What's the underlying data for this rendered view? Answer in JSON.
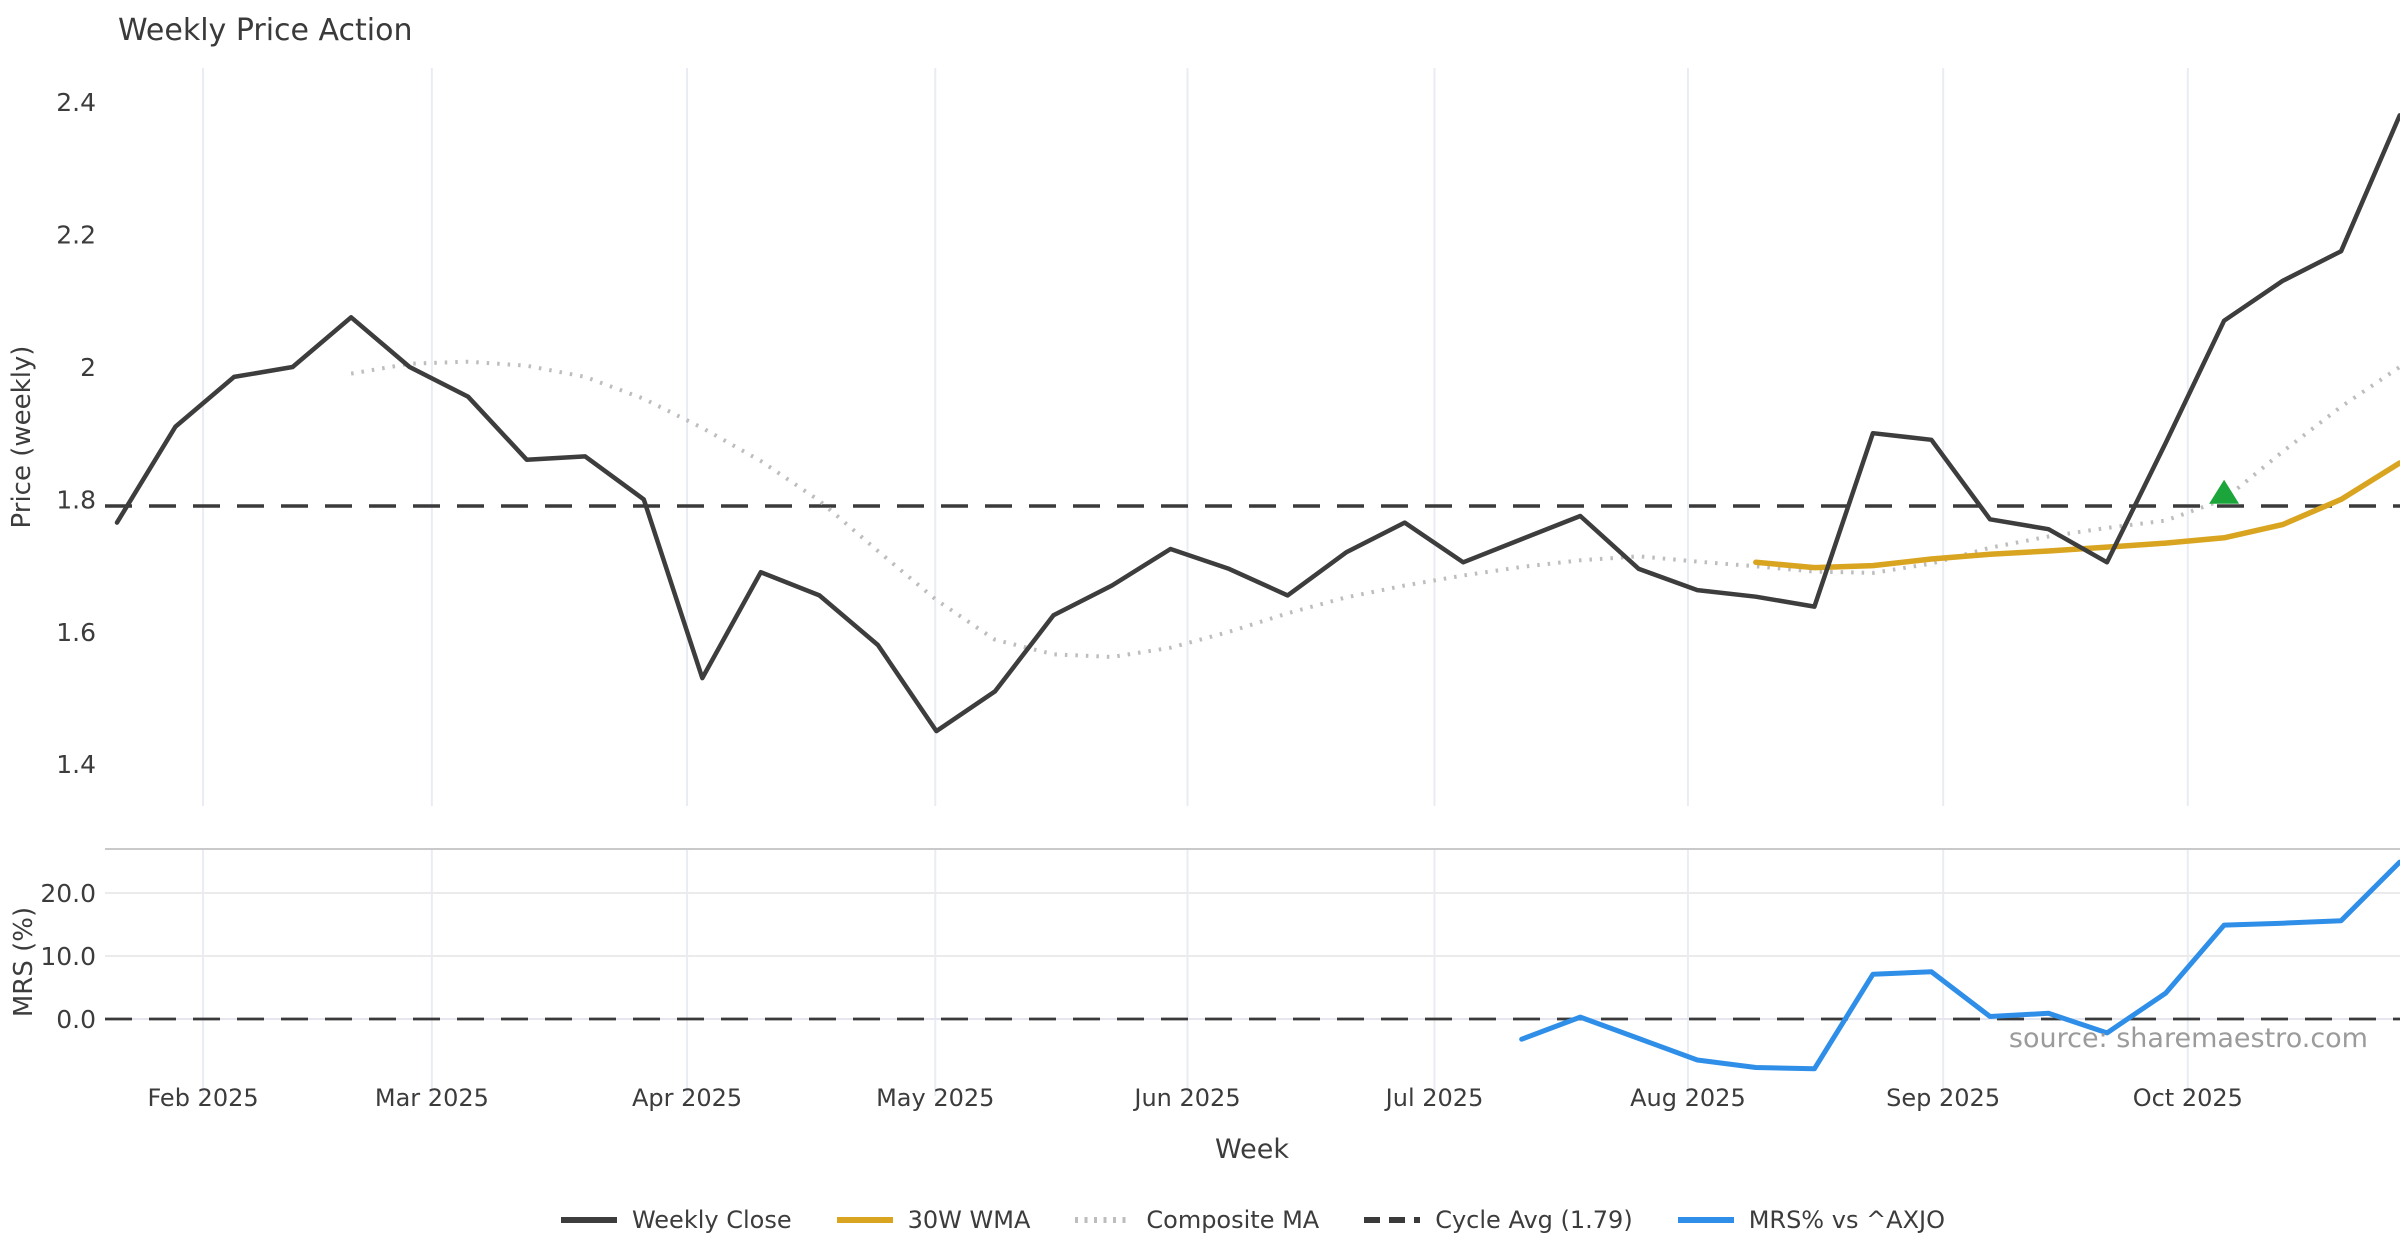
{
  "title": "Weekly Price Action",
  "source_note": "source: sharemaestro.com",
  "colors": {
    "weekly_close": "#3D3D3D",
    "wma_30w": "#D9A521",
    "composite_ma": "#BDBDBD",
    "cycle_avg": "#3A3A3A",
    "mrs": "#2F8FE8",
    "signal_marker": "#1CA53A",
    "gridline": "#E9EDF3",
    "panel_spine": "#C9C9C9",
    "hgrid": "#EBEBEB",
    "zero_grid": "#E6E6F0",
    "text": "#3C3C3C",
    "muted_text": "#9B9B9B"
  },
  "chart_data": {
    "type": "line",
    "title": "Weekly Price Action",
    "x_axis": {
      "label": "Week",
      "unit": "weekly",
      "n_points": 40,
      "month_ticks": [
        {
          "label": "Feb 2025",
          "pos": 1.47
        },
        {
          "label": "Mar 2025",
          "pos": 5.38
        },
        {
          "label": "Apr 2025",
          "pos": 9.74
        },
        {
          "label": "May 2025",
          "pos": 13.98
        },
        {
          "label": "Jun 2025",
          "pos": 18.29
        },
        {
          "label": "Jul 2025",
          "pos": 22.51
        },
        {
          "label": "Aug 2025",
          "pos": 26.84
        },
        {
          "label": "Sep 2025",
          "pos": 31.2
        },
        {
          "label": "Oct 2025",
          "pos": 35.38
        }
      ]
    },
    "panels": [
      {
        "name": "price",
        "ylabel": "Price (weekly)",
        "ylim": [
          1.34,
          2.45
        ],
        "grid": "vertical-only",
        "yticks": [
          {
            "v": 2.4,
            "label": "2.4"
          },
          {
            "v": 2.2,
            "label": "2.2"
          },
          {
            "v": 2.0,
            "label": "2"
          },
          {
            "v": 1.8,
            "label": "1.8"
          },
          {
            "v": 1.6,
            "label": "1.6"
          },
          {
            "v": 1.4,
            "label": "1.4"
          }
        ],
        "series": [
          {
            "name": "Weekly Close",
            "style": "solid",
            "color_key": "weekly_close",
            "width": 4.5,
            "start_index": 0,
            "values": [
              1.765,
              1.91,
              1.985,
              2.0,
              2.075,
              2.0,
              1.955,
              1.86,
              1.865,
              1.8,
              1.53,
              1.69,
              1.655,
              1.58,
              1.45,
              1.51,
              1.625,
              1.67,
              1.725,
              1.695,
              1.655,
              1.72,
              1.765,
              1.705,
              1.74,
              1.775,
              1.695,
              1.663,
              1.653,
              1.638,
              1.9,
              1.89,
              1.77,
              1.755,
              1.705,
              1.885,
              2.07,
              2.13,
              2.175,
              2.38
            ]
          },
          {
            "name": "30W WMA",
            "style": "solid",
            "color_key": "wma_30w",
            "width": 5.5,
            "start_index": 28,
            "values": [
              1.705,
              1.697,
              1.7,
              1.71,
              1.717,
              1.722,
              1.728,
              1.734,
              1.742,
              1.762,
              1.8,
              1.855
            ]
          },
          {
            "name": "Composite MA",
            "style": "dotted",
            "color_key": "composite_ma",
            "width": 4,
            "start_index": 4,
            "values": [
              1.99,
              2.005,
              2.008,
              2.002,
              1.985,
              1.952,
              1.908,
              1.858,
              1.798,
              1.722,
              1.648,
              1.588,
              1.566,
              1.562,
              1.576,
              1.6,
              1.628,
              1.652,
              1.67,
              1.685,
              1.698,
              1.708,
              1.714,
              1.706,
              1.699,
              1.691,
              1.689,
              1.703,
              1.727,
              1.744,
              1.757,
              1.768,
              1.8,
              1.872,
              1.94,
              2.0
            ]
          },
          {
            "name": "Cycle Avg (1.79)",
            "style": "dashed",
            "color_key": "cycle_avg",
            "width": 3.5,
            "type": "hline",
            "value": 1.79
          }
        ],
        "marker": {
          "shape": "triangle-up",
          "week_index": 36,
          "value": 1.81,
          "color_key": "signal_marker"
        }
      },
      {
        "name": "mrs",
        "ylabel": "MRS (%)",
        "ylim": [
          -12.2,
          27.0
        ],
        "grid": "both",
        "yticks": [
          {
            "v": 20,
            "label": "20.0"
          },
          {
            "v": 10,
            "label": "10.0"
          },
          {
            "v": 0,
            "label": "0.0"
          }
        ],
        "zero_line": {
          "style": "dashed",
          "value": 0,
          "color_key": "cycle_avg",
          "width": 2.8
        },
        "series": [
          {
            "name": "MRS% vs ^AXJO",
            "style": "solid",
            "color_key": "mrs",
            "width": 5,
            "start_index": 24,
            "values": [
              -3.2,
              0.3,
              -3.1,
              -6.5,
              -7.7,
              -7.9,
              7.1,
              7.5,
              0.4,
              0.9,
              -2.2,
              4.1,
              14.9,
              15.2,
              15.6,
              24.9
            ]
          }
        ]
      }
    ],
    "legend": [
      {
        "label": "Weekly Close",
        "pattern": "solid",
        "color_key": "weekly_close"
      },
      {
        "label": "30W WMA",
        "pattern": "solid",
        "color_key": "wma_30w"
      },
      {
        "label": "Composite MA",
        "pattern": "dotted",
        "color_key": "composite_ma"
      },
      {
        "label": "Cycle Avg (1.79)",
        "pattern": "dashed",
        "color_key": "cycle_avg"
      },
      {
        "label": "MRS% vs ^AXJO",
        "pattern": "solid",
        "color_key": "mrs"
      }
    ],
    "legend_position": "bottom-center"
  }
}
